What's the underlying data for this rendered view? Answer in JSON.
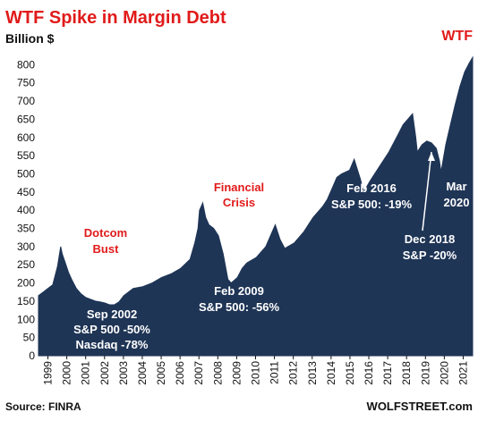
{
  "chart_data": {
    "type": "area",
    "title": "WTF Spike in Margin Debt",
    "ylabel": "Billion $",
    "xlabel": "",
    "ylim": [
      0,
      850
    ],
    "yticks": [
      0,
      50,
      100,
      150,
      200,
      250,
      300,
      350,
      400,
      450,
      500,
      550,
      600,
      650,
      700,
      750,
      800
    ],
    "xlim": [
      1999.0,
      2021.92
    ],
    "xticks": [
      "1999",
      "2000",
      "2001",
      "2002",
      "2003",
      "2004",
      "2005",
      "2006",
      "2007",
      "2008",
      "2009",
      "2010",
      "2011",
      "2012",
      "2013",
      "2014",
      "2015",
      "2016",
      "2017",
      "2018",
      "2019",
      "2020",
      "2021"
    ],
    "grid": false,
    "series": [
      {
        "name": "",
        "x": [
          1999.0,
          1999.25,
          1999.5,
          1999.75,
          2000.0,
          2000.17,
          2000.25,
          2000.42,
          2000.58,
          2000.75,
          2001.0,
          2001.25,
          2001.5,
          2001.75,
          2002.0,
          2002.25,
          2002.5,
          2002.75,
          2003.0,
          2003.25,
          2003.5,
          2003.75,
          2004.0,
          2004.5,
          2005.0,
          2005.5,
          2006.0,
          2006.5,
          2007.0,
          2007.25,
          2007.42,
          2007.5,
          2007.67,
          2007.83,
          2008.0,
          2008.25,
          2008.5,
          2008.75,
          2009.0,
          2009.17,
          2009.5,
          2009.75,
          2010.0,
          2010.5,
          2011.0,
          2011.25,
          2011.5,
          2011.75,
          2012.0,
          2012.5,
          2013.0,
          2013.5,
          2014.0,
          2014.25,
          2014.5,
          2014.75,
          2015.0,
          2015.42,
          2015.67,
          2016.0,
          2016.17,
          2016.5,
          2017.0,
          2017.5,
          2018.0,
          2018.25,
          2018.5,
          2018.75,
          2018.92,
          2019.0,
          2019.25,
          2019.5,
          2019.75,
          2020.0,
          2020.17,
          2020.25,
          2020.5,
          2020.75,
          2021.0,
          2021.25,
          2021.5,
          2021.75,
          2021.92
        ],
        "values": [
          165,
          175,
          185,
          195,
          245,
          300,
          280,
          255,
          230,
          210,
          185,
          170,
          160,
          155,
          150,
          148,
          145,
          140,
          140,
          148,
          165,
          175,
          185,
          190,
          200,
          215,
          225,
          240,
          265,
          310,
          350,
          400,
          420,
          380,
          360,
          350,
          330,
          280,
          210,
          200,
          215,
          240,
          255,
          270,
          300,
          330,
          360,
          320,
          295,
          310,
          340,
          380,
          410,
          430,
          460,
          490,
          500,
          510,
          540,
          485,
          450,
          480,
          520,
          560,
          610,
          635,
          650,
          665,
          600,
          560,
          580,
          590,
          585,
          570,
          535,
          505,
          580,
          635,
          690,
          740,
          780,
          805,
          820
        ]
      }
    ],
    "annotations": [
      {
        "text": "WTF",
        "color": "#e11a1a"
      },
      {
        "text": "Dotcom",
        "color": "#e11a1a"
      },
      {
        "text": "Bust",
        "color": "#e11a1a"
      },
      {
        "text": "Financial",
        "color": "#e11a1a"
      },
      {
        "text": "Crisis",
        "color": "#e11a1a"
      },
      {
        "text": "Sep 2002",
        "color": "#ffffff"
      },
      {
        "text": "S&P 500 -50%",
        "color": "#ffffff"
      },
      {
        "text": "Nasdaq -78%",
        "color": "#ffffff"
      },
      {
        "text": "Feb 2009",
        "color": "#ffffff"
      },
      {
        "text": "S&P 500: -56%",
        "color": "#ffffff"
      },
      {
        "text": "Feb 2016",
        "color": "#ffffff"
      },
      {
        "text": "S&P 500: -19%",
        "color": "#ffffff"
      },
      {
        "text": "Dec 2018",
        "color": "#ffffff"
      },
      {
        "text": "S&P -20%",
        "color": "#ffffff"
      },
      {
        "text": "Mar",
        "color": "#ffffff"
      },
      {
        "text": "2020",
        "color": "#ffffff"
      }
    ],
    "source": "Source: FINRA",
    "watermark": "WOLFSTREET.com",
    "colors": {
      "fill": "#1f3556",
      "title": "#e11a1a",
      "axis_text": "#111111"
    }
  }
}
